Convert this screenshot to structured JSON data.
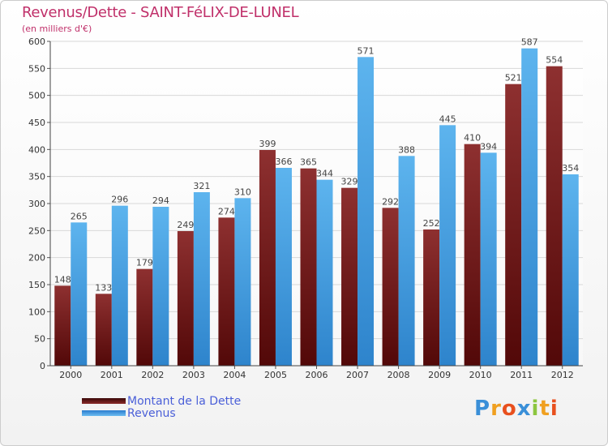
{
  "chart_data": {
    "type": "bar",
    "title": "Revenus/Dette - SAINT-FéLIX-DE-LUNEL",
    "subtitle": "(en milliers d'€)",
    "categories": [
      "2000",
      "2001",
      "2002",
      "2003",
      "2004",
      "2005",
      "2006",
      "2007",
      "2008",
      "2009",
      "2010",
      "2011",
      "2012"
    ],
    "series": [
      {
        "name": "Montant de la Dette",
        "color": "#7a1a1a",
        "values": [
          148,
          133,
          179,
          249,
          274,
          399,
          365,
          329,
          292,
          252,
          410,
          521,
          554
        ]
      },
      {
        "name": "Revenus",
        "color": "#4aa3e3",
        "values": [
          265,
          296,
          294,
          321,
          310,
          366,
          344,
          571,
          388,
          445,
          394,
          587,
          354
        ]
      }
    ],
    "ylim": [
      0,
      600
    ],
    "ytick_step": 50,
    "grid": true,
    "legend_position": "bottom-left",
    "xlabel": "",
    "ylabel": ""
  },
  "logo": {
    "text": "Proxiti"
  }
}
